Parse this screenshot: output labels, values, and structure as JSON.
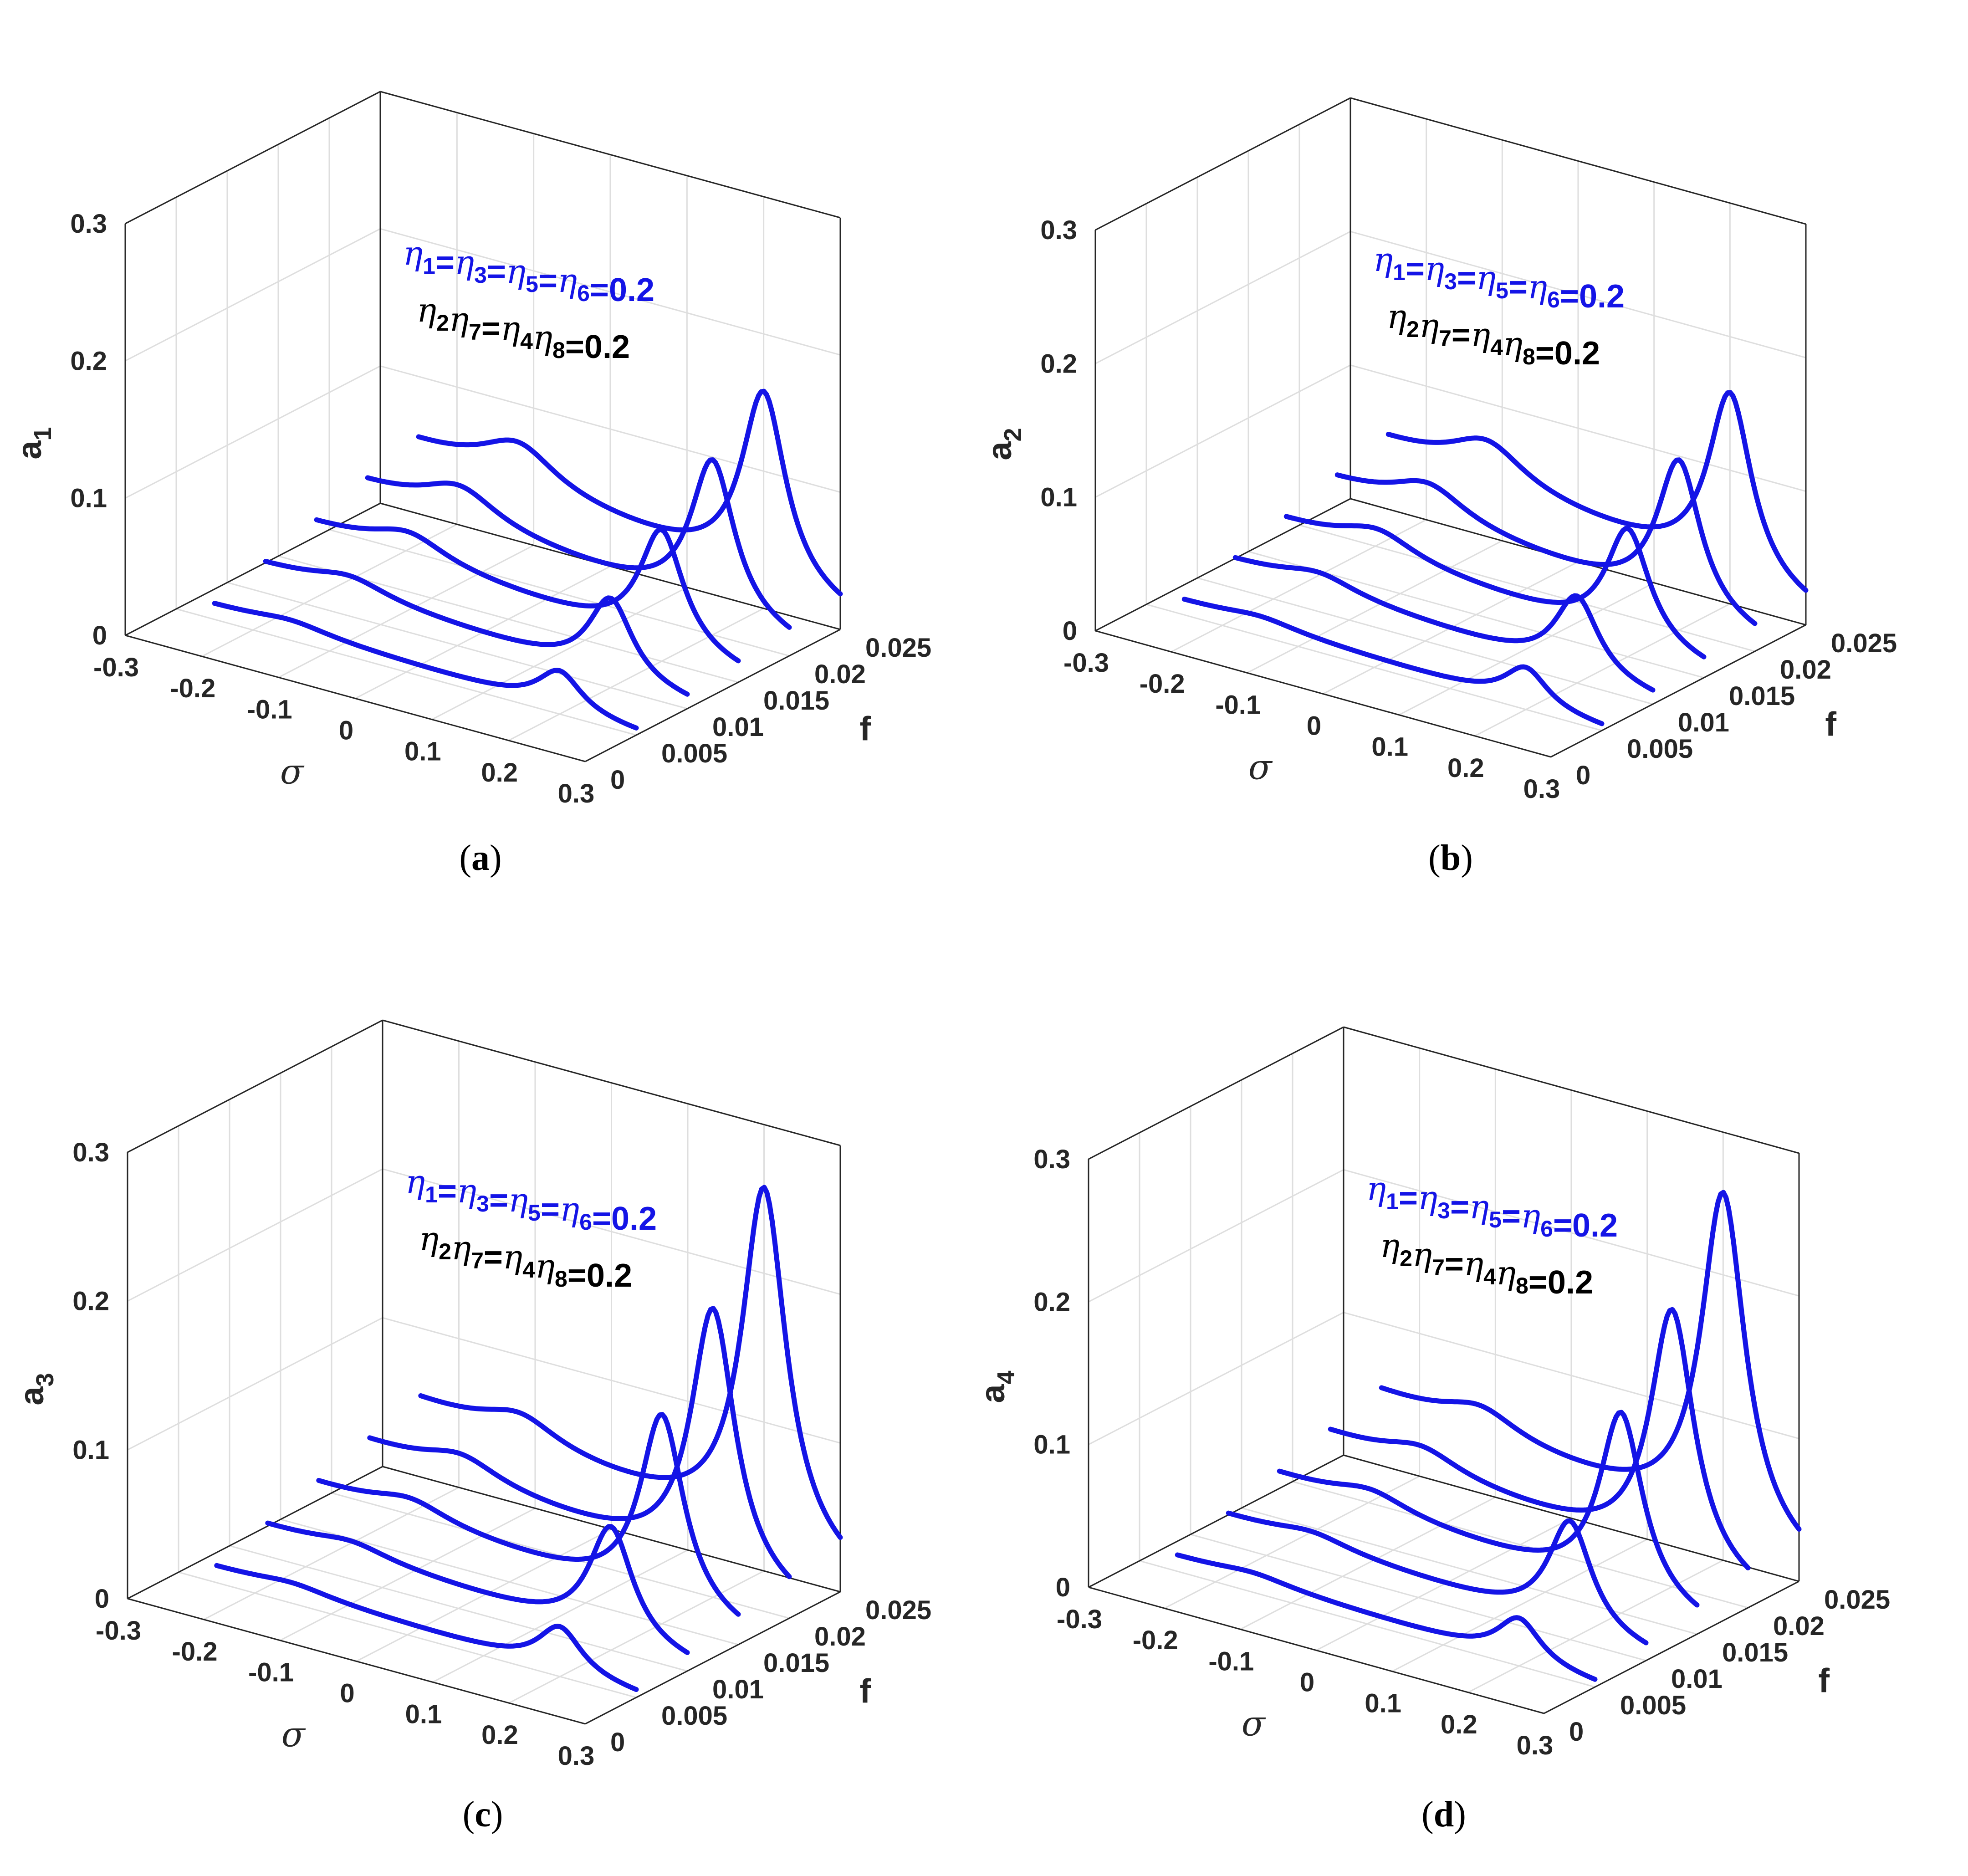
{
  "colors": {
    "curve": "#1414e6",
    "legend_blue": "#1414e6",
    "legend_black": "#000000",
    "axis": "#262626",
    "grid": "#dedede"
  },
  "chart_data": [
    {
      "type": "line",
      "id": "a",
      "panel_label": "a",
      "title": "",
      "ylabel": "a",
      "ylabel_sub": "1",
      "xlabel": "σ",
      "zlabel": "f",
      "sigma_ticks": [
        "-0.3",
        "-0.2",
        "-0.1",
        "0",
        "0.1",
        "0.2",
        "0.3"
      ],
      "f_ticks": [
        "0",
        "0.005",
        "0.01",
        "0.015",
        "0.02",
        "0.025"
      ],
      "a_ticks": [
        "0",
        "0.1",
        "0.2",
        "0.3"
      ],
      "sigma_range": [
        -0.3,
        0.3
      ],
      "f_range": [
        0,
        0.025
      ],
      "a_range": [
        0,
        0.3
      ],
      "legend": {
        "line1": [
          {
            "sym": "η",
            "sub": "1"
          },
          {
            "text": "="
          },
          {
            "sym": "η",
            "sub": "3"
          },
          {
            "text": "="
          },
          {
            "sym": "η",
            "sub": "5"
          },
          {
            "text": "="
          },
          {
            "sym": "η",
            "sub": "6"
          },
          {
            "text": "=0.2"
          }
        ],
        "line2": [
          {
            "sym": "η",
            "sub": "2"
          },
          {
            "sym": "η",
            "sub": "7"
          },
          {
            "text": "="
          },
          {
            "sym": "η",
            "sub": "4"
          },
          {
            "sym": "η",
            "sub": "8"
          },
          {
            "text": "=0.2"
          }
        ]
      },
      "series": [
        {
          "f": 0.005,
          "low_peak": {
            "sigma": -0.15,
            "a": 0.006
          },
          "high_peak": {
            "sigma": 0.2,
            "a": 0.028
          },
          "base": 0.01,
          "tail": 0.002
        },
        {
          "f": 0.01,
          "low_peak": {
            "sigma": -0.14,
            "a": 0.012
          },
          "high_peak": {
            "sigma": 0.2,
            "a": 0.058
          },
          "base": 0.02,
          "tail": 0.004
        },
        {
          "f": 0.015,
          "low_peak": {
            "sigma": -0.13,
            "a": 0.018
          },
          "high_peak": {
            "sigma": 0.2,
            "a": 0.085
          },
          "base": 0.03,
          "tail": 0.006
        },
        {
          "f": 0.02,
          "low_peak": {
            "sigma": -0.13,
            "a": 0.024
          },
          "high_peak": {
            "sigma": 0.2,
            "a": 0.113
          },
          "base": 0.04,
          "tail": 0.008
        },
        {
          "f": 0.025,
          "low_peak": {
            "sigma": -0.12,
            "a": 0.03
          },
          "high_peak": {
            "sigma": 0.2,
            "a": 0.14
          },
          "base": 0.05,
          "tail": 0.01
        }
      ]
    },
    {
      "type": "line",
      "id": "b",
      "panel_label": "b",
      "title": "",
      "ylabel": "a",
      "ylabel_sub": "2",
      "xlabel": "σ",
      "zlabel": "f",
      "sigma_ticks": [
        "-0.3",
        "-0.2",
        "-0.1",
        "0",
        "0.1",
        "0.2",
        "0.3"
      ],
      "f_ticks": [
        "0",
        "0.005",
        "0.01",
        "0.015",
        "0.02",
        "0.025"
      ],
      "a_ticks": [
        "0",
        "0.1",
        "0.2",
        "0.3"
      ],
      "sigma_range": [
        -0.3,
        0.3
      ],
      "f_range": [
        0,
        0.025
      ],
      "a_range": [
        0,
        0.3
      ],
      "legend": {
        "line1": [
          {
            "sym": "η",
            "sub": "1"
          },
          {
            "text": "="
          },
          {
            "sym": "η",
            "sub": "3"
          },
          {
            "text": "="
          },
          {
            "sym": "η",
            "sub": "5"
          },
          {
            "text": "="
          },
          {
            "sym": "η",
            "sub": "6"
          },
          {
            "text": "=0.2"
          }
        ],
        "line2": [
          {
            "sym": "η",
            "sub": "2"
          },
          {
            "sym": "η",
            "sub": "7"
          },
          {
            "text": "="
          },
          {
            "sym": "η",
            "sub": "4"
          },
          {
            "sym": "η",
            "sub": "8"
          },
          {
            "text": "=0.2"
          }
        ]
      },
      "series": [
        {
          "f": 0.005,
          "low_peak": {
            "sigma": -0.15,
            "a": 0.006
          },
          "high_peak": {
            "sigma": 0.2,
            "a": 0.028
          },
          "base": 0.01,
          "tail": 0.002
        },
        {
          "f": 0.01,
          "low_peak": {
            "sigma": -0.14,
            "a": 0.012
          },
          "high_peak": {
            "sigma": 0.2,
            "a": 0.058
          },
          "base": 0.02,
          "tail": 0.004
        },
        {
          "f": 0.015,
          "low_peak": {
            "sigma": -0.13,
            "a": 0.018
          },
          "high_peak": {
            "sigma": 0.2,
            "a": 0.085
          },
          "base": 0.03,
          "tail": 0.006
        },
        {
          "f": 0.02,
          "low_peak": {
            "sigma": -0.13,
            "a": 0.024
          },
          "high_peak": {
            "sigma": 0.2,
            "a": 0.113
          },
          "base": 0.04,
          "tail": 0.008
        },
        {
          "f": 0.025,
          "low_peak": {
            "sigma": -0.12,
            "a": 0.03
          },
          "high_peak": {
            "sigma": 0.2,
            "a": 0.14
          },
          "base": 0.05,
          "tail": 0.01
        }
      ]
    },
    {
      "type": "line",
      "id": "c",
      "panel_label": "c",
      "title": "",
      "ylabel": "a",
      "ylabel_sub": "3",
      "xlabel": "σ",
      "zlabel": "f",
      "sigma_ticks": [
        "-0.3",
        "-0.2",
        "-0.1",
        "0",
        "0.1",
        "0.2",
        "0.3"
      ],
      "f_ticks": [
        "0",
        "0.005",
        "0.01",
        "0.015",
        "0.02",
        "0.025"
      ],
      "a_ticks": [
        "0",
        "0.1",
        "0.2",
        "0.3"
      ],
      "sigma_range": [
        -0.3,
        0.3
      ],
      "f_range": [
        0,
        0.025
      ],
      "a_range": [
        0,
        0.3
      ],
      "legend": {
        "line1": [
          {
            "sym": "η",
            "sub": "1"
          },
          {
            "text": "="
          },
          {
            "sym": "η",
            "sub": "3"
          },
          {
            "text": "="
          },
          {
            "sym": "η",
            "sub": "5"
          },
          {
            "text": "="
          },
          {
            "sym": "η",
            "sub": "6"
          },
          {
            "text": "=0.2"
          }
        ],
        "line2": [
          {
            "sym": "η",
            "sub": "2"
          },
          {
            "sym": "η",
            "sub": "7"
          },
          {
            "text": "="
          },
          {
            "sym": "η",
            "sub": "4"
          },
          {
            "sym": "η",
            "sub": "8"
          },
          {
            "text": "=0.2"
          }
        ]
      },
      "series": [
        {
          "f": 0.005,
          "low_peak": {
            "sigma": -0.15,
            "a": 0.005
          },
          "high_peak": {
            "sigma": 0.2,
            "a": 0.03
          },
          "base": 0.01,
          "tail": 0.002
        },
        {
          "f": 0.01,
          "low_peak": {
            "sigma": -0.14,
            "a": 0.008
          },
          "high_peak": {
            "sigma": 0.2,
            "a": 0.076
          },
          "base": 0.02,
          "tail": 0.004
        },
        {
          "f": 0.015,
          "low_peak": {
            "sigma": -0.13,
            "a": 0.012
          },
          "high_peak": {
            "sigma": 0.2,
            "a": 0.13
          },
          "base": 0.03,
          "tail": 0.006
        },
        {
          "f": 0.02,
          "low_peak": {
            "sigma": -0.13,
            "a": 0.015
          },
          "high_peak": {
            "sigma": 0.2,
            "a": 0.18
          },
          "base": 0.04,
          "tail": 0.008
        },
        {
          "f": 0.025,
          "low_peak": {
            "sigma": -0.12,
            "a": 0.018
          },
          "high_peak": {
            "sigma": 0.2,
            "a": 0.24
          },
          "base": 0.05,
          "tail": 0.01
        }
      ]
    },
    {
      "type": "line",
      "id": "d",
      "panel_label": "d",
      "title": "",
      "ylabel": "a",
      "ylabel_sub": "4",
      "xlabel": "σ",
      "zlabel": "f",
      "sigma_ticks": [
        "-0.3",
        "-0.2",
        "-0.1",
        "0",
        "0.1",
        "0.2",
        "0.3"
      ],
      "f_ticks": [
        "0",
        "0.005",
        "0.01",
        "0.015",
        "0.02",
        "0.025"
      ],
      "a_ticks": [
        "0",
        "0.1",
        "0.2",
        "0.3"
      ],
      "sigma_range": [
        -0.3,
        0.3
      ],
      "f_range": [
        0,
        0.025
      ],
      "a_range": [
        0,
        0.3
      ],
      "legend": {
        "line1": [
          {
            "sym": "η",
            "sub": "1"
          },
          {
            "text": "="
          },
          {
            "sym": "η",
            "sub": "3"
          },
          {
            "text": "="
          },
          {
            "sym": "η",
            "sub": "5"
          },
          {
            "text": "="
          },
          {
            "sym": "η",
            "sub": "6"
          },
          {
            "text": "=0.2"
          }
        ],
        "line2": [
          {
            "sym": "η",
            "sub": "2"
          },
          {
            "sym": "η",
            "sub": "7"
          },
          {
            "text": "="
          },
          {
            "sym": "η",
            "sub": "4"
          },
          {
            "sym": "η",
            "sub": "8"
          },
          {
            "text": "=0.2"
          }
        ]
      },
      "series": [
        {
          "f": 0.005,
          "low_peak": {
            "sigma": -0.15,
            "a": 0.005
          },
          "high_peak": {
            "sigma": 0.2,
            "a": 0.03
          },
          "base": 0.01,
          "tail": 0.002
        },
        {
          "f": 0.01,
          "low_peak": {
            "sigma": -0.14,
            "a": 0.008
          },
          "high_peak": {
            "sigma": 0.2,
            "a": 0.076
          },
          "base": 0.02,
          "tail": 0.004
        },
        {
          "f": 0.015,
          "low_peak": {
            "sigma": -0.13,
            "a": 0.012
          },
          "high_peak": {
            "sigma": 0.2,
            "a": 0.13
          },
          "base": 0.03,
          "tail": 0.006
        },
        {
          "f": 0.02,
          "low_peak": {
            "sigma": -0.13,
            "a": 0.015
          },
          "high_peak": {
            "sigma": 0.2,
            "a": 0.18
          },
          "base": 0.04,
          "tail": 0.008
        },
        {
          "f": 0.025,
          "low_peak": {
            "sigma": -0.12,
            "a": 0.018
          },
          "high_peak": {
            "sigma": 0.2,
            "a": 0.24
          },
          "base": 0.05,
          "tail": 0.01
        }
      ]
    }
  ]
}
